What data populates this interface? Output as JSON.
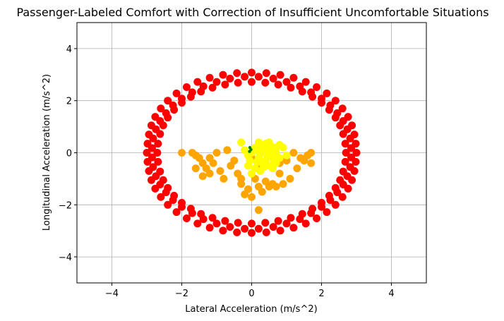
{
  "chart_data": {
    "type": "scatter",
    "title": "Passenger-Labeled Comfort with Correction of Insufficient Uncomfortable Situations",
    "xlabel": "Lateral Acceleration (m/s^2)",
    "ylabel": "Longitudinal Acceleration (m/s^2)",
    "xlim": [
      -5,
      5
    ],
    "ylim": [
      -5,
      5
    ],
    "xticks": [
      -4,
      -2,
      0,
      2,
      4
    ],
    "yticks": [
      -4,
      -2,
      0,
      2,
      4
    ],
    "xtick_labels": [
      "−4",
      "−2",
      "0",
      "2",
      "4"
    ],
    "ytick_labels": [
      "−4",
      "−2",
      "0",
      "2",
      "4"
    ],
    "grid": true,
    "legend": "none",
    "series": [
      {
        "color": "#ff0000",
        "description_of_shape": "ring",
        "points": [
          [
            3.0,
            0.0
          ],
          [
            2.98,
            0.35
          ],
          [
            2.94,
            0.7
          ],
          [
            2.87,
            1.05
          ],
          [
            2.76,
            1.38
          ],
          [
            2.6,
            1.7
          ],
          [
            2.4,
            2.0
          ],
          [
            2.15,
            2.28
          ],
          [
            1.86,
            2.52
          ],
          [
            1.55,
            2.72
          ],
          [
            1.2,
            2.88
          ],
          [
            0.82,
            2.99
          ],
          [
            0.42,
            3.06
          ],
          [
            0.0,
            3.08
          ],
          [
            -0.42,
            3.06
          ],
          [
            -0.82,
            2.99
          ],
          [
            -1.2,
            2.88
          ],
          [
            -1.55,
            2.72
          ],
          [
            -1.86,
            2.52
          ],
          [
            -2.15,
            2.28
          ],
          [
            -2.4,
            2.0
          ],
          [
            -2.6,
            1.7
          ],
          [
            -2.76,
            1.38
          ],
          [
            -2.87,
            1.05
          ],
          [
            -2.94,
            0.7
          ],
          [
            -2.98,
            0.35
          ],
          [
            -3.0,
            0.0
          ],
          [
            -2.98,
            -0.35
          ],
          [
            -2.94,
            -0.7
          ],
          [
            -2.87,
            -1.05
          ],
          [
            -2.76,
            -1.38
          ],
          [
            -2.6,
            -1.7
          ],
          [
            -2.4,
            -2.0
          ],
          [
            -2.15,
            -2.28
          ],
          [
            -1.86,
            -2.52
          ],
          [
            -1.55,
            -2.72
          ],
          [
            -1.2,
            -2.88
          ],
          [
            -0.82,
            -2.99
          ],
          [
            -0.42,
            -3.06
          ],
          [
            0.0,
            -3.08
          ],
          [
            0.42,
            -3.06
          ],
          [
            0.82,
            -2.99
          ],
          [
            1.2,
            -2.88
          ],
          [
            1.55,
            -2.72
          ],
          [
            1.86,
            -2.52
          ],
          [
            2.15,
            -2.28
          ],
          [
            2.4,
            -2.0
          ],
          [
            2.6,
            -1.7
          ],
          [
            2.76,
            -1.38
          ],
          [
            2.87,
            -1.05
          ],
          [
            2.94,
            -0.7
          ],
          [
            2.98,
            -0.35
          ],
          [
            2.7,
            0.0
          ],
          [
            2.68,
            0.35
          ],
          [
            2.62,
            0.72
          ],
          [
            2.53,
            1.05
          ],
          [
            2.4,
            1.35
          ],
          [
            2.22,
            1.65
          ],
          [
            2.0,
            1.92
          ],
          [
            1.74,
            2.15
          ],
          [
            1.45,
            2.35
          ],
          [
            1.12,
            2.5
          ],
          [
            0.76,
            2.62
          ],
          [
            0.39,
            2.69
          ],
          [
            0.0,
            2.72
          ],
          [
            -0.39,
            2.69
          ],
          [
            -0.76,
            2.62
          ],
          [
            -1.12,
            2.5
          ],
          [
            -1.45,
            2.35
          ],
          [
            -1.74,
            2.15
          ],
          [
            -2.0,
            1.92
          ],
          [
            -2.22,
            1.65
          ],
          [
            -2.4,
            1.35
          ],
          [
            -2.53,
            1.05
          ],
          [
            -2.62,
            0.72
          ],
          [
            -2.68,
            0.35
          ],
          [
            -2.7,
            0.0
          ],
          [
            -2.68,
            -0.35
          ],
          [
            -2.62,
            -0.72
          ],
          [
            -2.53,
            -1.05
          ],
          [
            -2.4,
            -1.35
          ],
          [
            -2.22,
            -1.65
          ],
          [
            -2.0,
            -1.92
          ],
          [
            -1.74,
            -2.15
          ],
          [
            -1.45,
            -2.35
          ],
          [
            -1.12,
            -2.5
          ],
          [
            -0.76,
            -2.62
          ],
          [
            -0.39,
            -2.69
          ],
          [
            0.0,
            -2.72
          ],
          [
            0.39,
            -2.69
          ],
          [
            0.76,
            -2.62
          ],
          [
            1.12,
            -2.5
          ],
          [
            1.45,
            -2.35
          ],
          [
            1.74,
            -2.15
          ],
          [
            2.0,
            -1.92
          ],
          [
            2.22,
            -1.65
          ],
          [
            2.4,
            -1.35
          ],
          [
            2.53,
            -1.05
          ],
          [
            2.62,
            -0.72
          ],
          [
            2.68,
            -0.35
          ],
          [
            2.85,
            0.18
          ],
          [
            2.82,
            0.55
          ],
          [
            2.74,
            0.9
          ],
          [
            2.62,
            1.22
          ],
          [
            2.45,
            1.52
          ],
          [
            2.25,
            1.82
          ],
          [
            2.0,
            2.08
          ],
          [
            1.7,
            2.32
          ],
          [
            1.38,
            2.55
          ],
          [
            1.0,
            2.72
          ],
          [
            0.62,
            2.85
          ],
          [
            0.2,
            2.92
          ],
          [
            -0.2,
            2.92
          ],
          [
            -0.62,
            2.85
          ],
          [
            -1.0,
            2.72
          ],
          [
            -1.38,
            2.55
          ],
          [
            -1.7,
            2.32
          ],
          [
            -2.0,
            2.08
          ],
          [
            -2.25,
            1.82
          ],
          [
            -2.45,
            1.52
          ],
          [
            -2.62,
            1.22
          ],
          [
            -2.74,
            0.9
          ],
          [
            -2.82,
            0.55
          ],
          [
            -2.85,
            0.18
          ],
          [
            -2.85,
            -0.18
          ],
          [
            -2.82,
            -0.55
          ],
          [
            -2.74,
            -0.9
          ],
          [
            -2.62,
            -1.22
          ],
          [
            -2.45,
            -1.52
          ],
          [
            -2.25,
            -1.82
          ],
          [
            -2.0,
            -2.08
          ],
          [
            -1.7,
            -2.32
          ],
          [
            -1.38,
            -2.55
          ],
          [
            -1.0,
            -2.72
          ],
          [
            -0.62,
            -2.85
          ],
          [
            -0.2,
            -2.92
          ],
          [
            0.2,
            -2.92
          ],
          [
            0.62,
            -2.85
          ],
          [
            1.0,
            -2.72
          ],
          [
            1.38,
            -2.55
          ],
          [
            1.7,
            -2.32
          ],
          [
            2.0,
            -2.08
          ],
          [
            2.25,
            -1.82
          ],
          [
            2.45,
            -1.52
          ],
          [
            2.62,
            -1.22
          ],
          [
            2.74,
            -0.9
          ],
          [
            2.82,
            -0.55
          ],
          [
            2.85,
            -0.18
          ]
        ]
      },
      {
        "color": "#ffa500",
        "points": [
          [
            -2.0,
            0.0
          ],
          [
            -1.7,
            0.0
          ],
          [
            -1.6,
            -0.1
          ],
          [
            -1.5,
            -0.2
          ],
          [
            -1.4,
            -0.4
          ],
          [
            -1.3,
            -0.6
          ],
          [
            -1.2,
            -0.8
          ],
          [
            -1.4,
            -0.9
          ],
          [
            -1.6,
            -0.6
          ],
          [
            -1.2,
            -0.2
          ],
          [
            -1.0,
            0.0
          ],
          [
            -0.9,
            -0.7
          ],
          [
            -0.8,
            -1.0
          ],
          [
            -0.5,
            -0.3
          ],
          [
            -0.4,
            -0.8
          ],
          [
            -0.3,
            -1.2
          ],
          [
            -0.2,
            -1.6
          ],
          [
            0.0,
            -1.7
          ],
          [
            -0.1,
            -1.4
          ],
          [
            0.1,
            -1.0
          ],
          [
            0.2,
            -1.3
          ],
          [
            0.0,
            -0.2
          ],
          [
            0.2,
            -0.5
          ],
          [
            0.4,
            -1.1
          ],
          [
            0.5,
            -1.3
          ],
          [
            0.6,
            -1.2
          ],
          [
            0.8,
            -0.8
          ],
          [
            1.0,
            -0.3
          ],
          [
            1.2,
            0.0
          ],
          [
            1.4,
            -0.2
          ],
          [
            1.3,
            -0.6
          ],
          [
            1.5,
            -0.3
          ],
          [
            1.6,
            -0.1
          ],
          [
            1.7,
            0.0
          ],
          [
            1.7,
            -0.4
          ],
          [
            1.1,
            -1.0
          ],
          [
            0.9,
            -1.2
          ],
          [
            0.7,
            -1.3
          ],
          [
            0.2,
            -2.2
          ],
          [
            -0.3,
            -1.0
          ],
          [
            -0.6,
            -0.5
          ],
          [
            -0.7,
            0.1
          ],
          [
            -1.1,
            -0.4
          ],
          [
            0.3,
            -1.5
          ],
          [
            0.8,
            -0.4
          ]
        ]
      },
      {
        "color": "#ffff00",
        "points": [
          [
            -0.3,
            0.4
          ],
          [
            -0.2,
            0.1
          ],
          [
            -0.1,
            -0.1
          ],
          [
            0.0,
            0.0
          ],
          [
            0.1,
            0.2
          ],
          [
            0.2,
            0.4
          ],
          [
            0.3,
            0.3
          ],
          [
            0.4,
            0.1
          ],
          [
            0.5,
            0.0
          ],
          [
            0.6,
            -0.2
          ],
          [
            0.7,
            0.0
          ],
          [
            0.8,
            0.3
          ],
          [
            0.9,
            0.2
          ],
          [
            1.0,
            -0.1
          ],
          [
            0.3,
            -0.4
          ],
          [
            0.4,
            -0.3
          ],
          [
            0.5,
            -0.5
          ],
          [
            0.6,
            -0.6
          ],
          [
            0.7,
            -0.4
          ],
          [
            0.2,
            -0.2
          ],
          [
            0.1,
            -0.6
          ],
          [
            0.0,
            -0.8
          ],
          [
            -0.1,
            -0.5
          ],
          [
            0.3,
            0.0
          ],
          [
            0.5,
            0.4
          ],
          [
            0.4,
            0.35
          ],
          [
            0.6,
            0.1
          ],
          [
            0.8,
            -0.2
          ],
          [
            0.2,
            0.05
          ],
          [
            -0.05,
            -0.3
          ],
          [
            0.15,
            -0.35
          ],
          [
            0.45,
            -0.15
          ],
          [
            0.55,
            0.25
          ],
          [
            0.35,
            -0.55
          ],
          [
            0.25,
            -0.7
          ],
          [
            0.65,
            -0.35
          ],
          [
            0.7,
            0.2
          ]
        ]
      },
      {
        "color": "#008000",
        "points": [
          [
            -0.05,
            0.2
          ],
          [
            -0.02,
            0.12
          ],
          [
            -0.06,
            0.05
          ]
        ]
      }
    ]
  }
}
